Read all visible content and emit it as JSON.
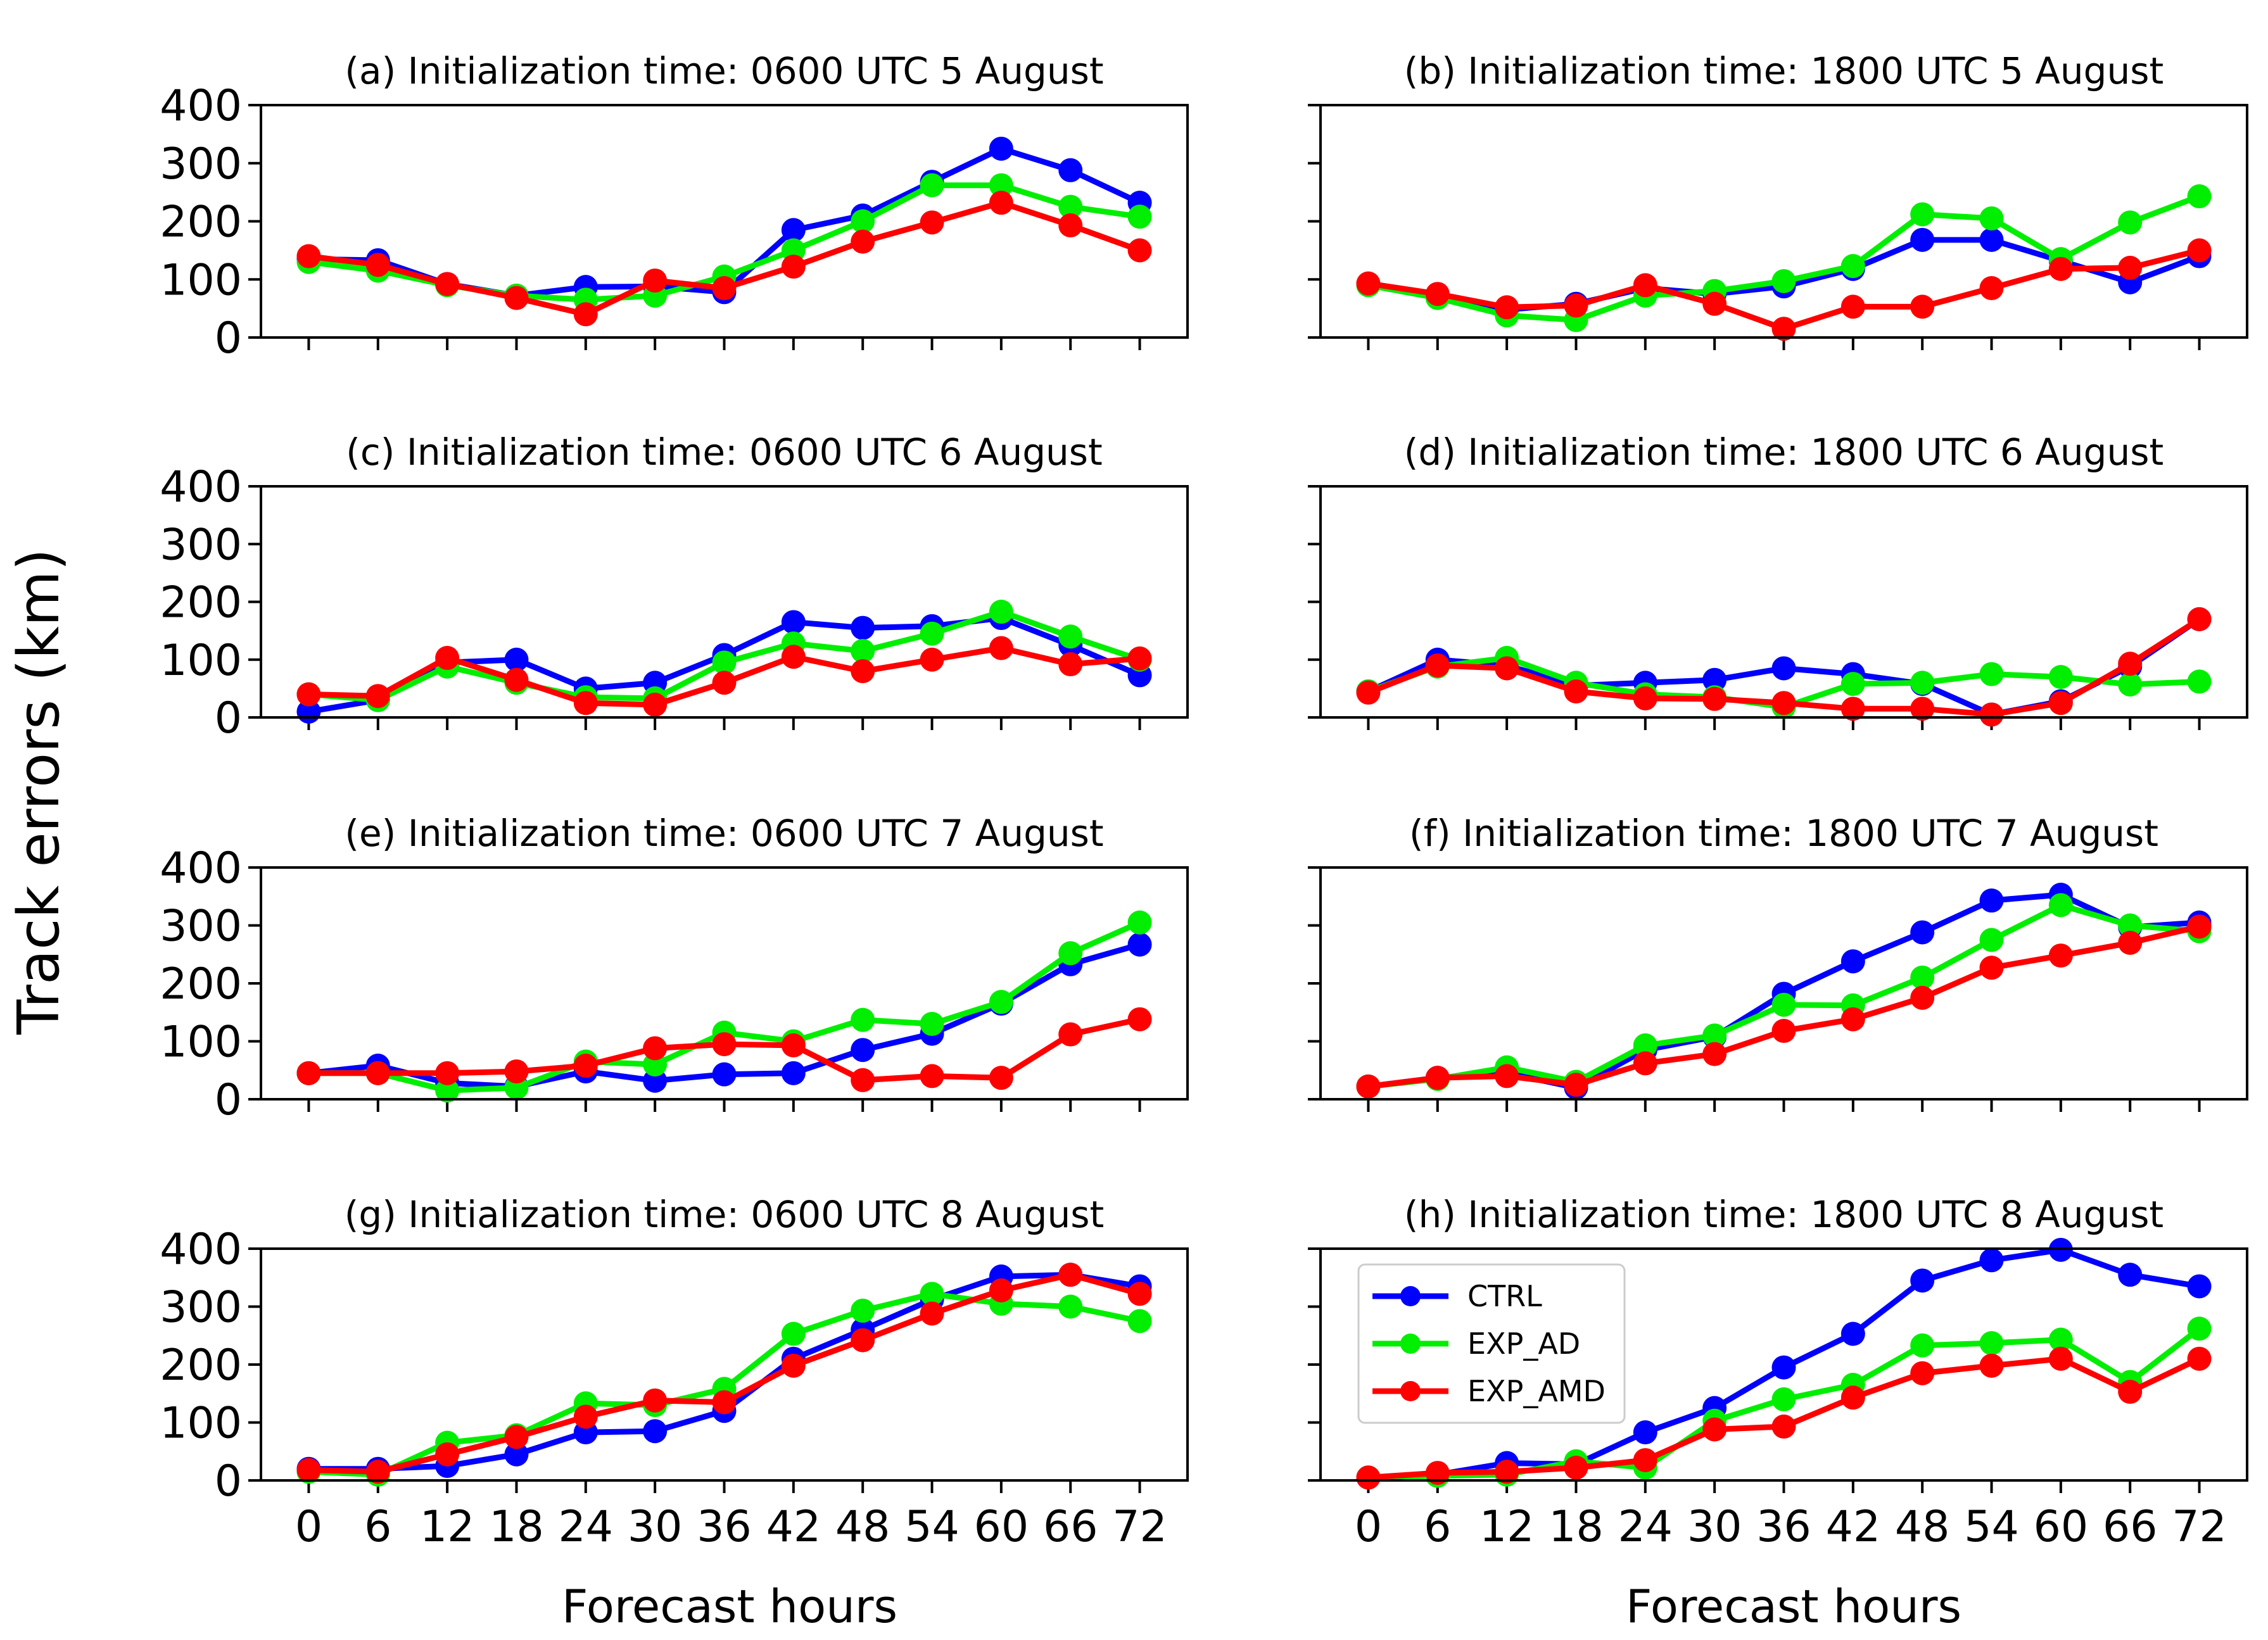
{
  "figure": {
    "ylabel": "Track errors (km)",
    "xlabel": "Forecast hours"
  },
  "legend": {
    "location": "upper-left of panel (h)",
    "entries": [
      "CTRL",
      "EXP_AD",
      "EXP_AMD"
    ]
  },
  "colors": {
    "CTRL": "#0000ff",
    "EXP_AD": "#00ee00",
    "EXP_AMD": "#ff0000"
  },
  "chart_data": [
    {
      "type": "line",
      "title": "(a) Initialization time: 0600 UTC 5 August",
      "x": [
        0,
        6,
        12,
        18,
        24,
        30,
        36,
        42,
        48,
        54,
        60,
        66,
        72
      ],
      "ylim": [
        0,
        400
      ],
      "yticks": [
        0,
        100,
        200,
        300,
        400
      ],
      "series": [
        {
          "name": "CTRL",
          "values": [
            135,
            133,
            92,
            72,
            87,
            88,
            78,
            185,
            210,
            268,
            325,
            288,
            232
          ]
        },
        {
          "name": "EXP_AD",
          "values": [
            130,
            115,
            90,
            72,
            65,
            72,
            105,
            150,
            200,
            262,
            262,
            225,
            208
          ]
        },
        {
          "name": "EXP_AMD",
          "values": [
            140,
            125,
            92,
            68,
            40,
            98,
            85,
            122,
            165,
            198,
            232,
            193,
            150
          ]
        }
      ]
    },
    {
      "type": "line",
      "title": "(b) Initialization time: 1800 UTC 5 August",
      "x": [
        0,
        6,
        12,
        18,
        24,
        30,
        36,
        42,
        48,
        54,
        60,
        66,
        72
      ],
      "ylim": [
        0,
        400
      ],
      "yticks": [
        0,
        100,
        200,
        300,
        400
      ],
      "series": [
        {
          "name": "CTRL",
          "values": [
            92,
            72,
            48,
            58,
            85,
            75,
            88,
            118,
            168,
            168,
            132,
            95,
            140
          ]
        },
        {
          "name": "EXP_AD",
          "values": [
            90,
            68,
            38,
            30,
            72,
            80,
            97,
            123,
            212,
            205,
            135,
            198,
            243
          ]
        },
        {
          "name": "EXP_AMD",
          "values": [
            93,
            75,
            52,
            55,
            90,
            58,
            15,
            53,
            53,
            85,
            118,
            120,
            150
          ]
        }
      ]
    },
    {
      "type": "line",
      "title": "(c) Initialization time: 0600 UTC 6 August",
      "x": [
        0,
        6,
        12,
        18,
        24,
        30,
        36,
        42,
        48,
        54,
        60,
        66,
        72
      ],
      "ylim": [
        0,
        400
      ],
      "yticks": [
        0,
        100,
        200,
        300,
        400
      ],
      "series": [
        {
          "name": "CTRL",
          "values": [
            10,
            30,
            95,
            100,
            50,
            60,
            108,
            165,
            155,
            158,
            172,
            125,
            73
          ]
        },
        {
          "name": "EXP_AD",
          "values": [
            40,
            30,
            88,
            60,
            35,
            33,
            95,
            128,
            115,
            145,
            183,
            140,
            100
          ]
        },
        {
          "name": "EXP_AMD",
          "values": [
            40,
            37,
            103,
            65,
            25,
            22,
            60,
            105,
            80,
            100,
            120,
            92,
            102
          ]
        }
      ]
    },
    {
      "type": "line",
      "title": "(d) Initialization time: 1800 UTC 6 August",
      "x": [
        0,
        6,
        12,
        18,
        24,
        30,
        36,
        42,
        48,
        54,
        60,
        66,
        72
      ],
      "ylim": [
        0,
        400
      ],
      "yticks": [
        0,
        100,
        200,
        300,
        400
      ],
      "series": [
        {
          "name": "CTRL",
          "values": [
            45,
            100,
            90,
            55,
            60,
            65,
            85,
            75,
            58,
            5,
            28,
            88,
            170
          ]
        },
        {
          "name": "EXP_AD",
          "values": [
            45,
            88,
            103,
            60,
            40,
            35,
            18,
            58,
            60,
            75,
            70,
            57,
            62
          ]
        },
        {
          "name": "EXP_AMD",
          "values": [
            43,
            90,
            85,
            45,
            33,
            32,
            25,
            15,
            15,
            5,
            25,
            93,
            170
          ]
        }
      ]
    },
    {
      "type": "line",
      "title": "(e) Initialization time: 0600 UTC 7 August",
      "x": [
        0,
        6,
        12,
        18,
        24,
        30,
        36,
        42,
        48,
        54,
        60,
        66,
        72
      ],
      "ylim": [
        0,
        400
      ],
      "yticks": [
        0,
        100,
        200,
        300,
        400
      ],
      "series": [
        {
          "name": "CTRL",
          "values": [
            45,
            58,
            28,
            22,
            48,
            32,
            43,
            45,
            85,
            113,
            165,
            233,
            267
          ]
        },
        {
          "name": "EXP_AD",
          "values": [
            45,
            45,
            15,
            20,
            65,
            60,
            115,
            100,
            137,
            130,
            168,
            252,
            305
          ]
        },
        {
          "name": "EXP_AMD",
          "values": [
            45,
            45,
            45,
            48,
            58,
            88,
            95,
            93,
            33,
            40,
            37,
            112,
            138
          ]
        }
      ]
    },
    {
      "type": "line",
      "title": "(f) Initialization time: 1800 UTC 7 August",
      "x": [
        0,
        6,
        12,
        18,
        24,
        30,
        36,
        42,
        48,
        54,
        60,
        66,
        72
      ],
      "ylim": [
        0,
        400
      ],
      "yticks": [
        0,
        100,
        200,
        300,
        400
      ],
      "series": [
        {
          "name": "CTRL",
          "values": [
            22,
            37,
            45,
            20,
            85,
            108,
            182,
            238,
            288,
            343,
            353,
            297,
            305
          ]
        },
        {
          "name": "EXP_AD",
          "values": [
            22,
            35,
            55,
            30,
            93,
            110,
            163,
            162,
            210,
            275,
            335,
            300,
            290
          ]
        },
        {
          "name": "EXP_AMD",
          "values": [
            22,
            37,
            40,
            25,
            62,
            78,
            118,
            138,
            175,
            227,
            248,
            270,
            298
          ]
        }
      ]
    },
    {
      "type": "line",
      "title": "(g) Initialization time: 0600 UTC 8 August",
      "x": [
        0,
        6,
        12,
        18,
        24,
        30,
        36,
        42,
        48,
        54,
        60,
        66,
        72
      ],
      "ylim": [
        0,
        400
      ],
      "yticks": [
        0,
        100,
        200,
        300,
        400
      ],
      "series": [
        {
          "name": "CTRL",
          "values": [
            20,
            20,
            25,
            45,
            83,
            85,
            120,
            210,
            260,
            312,
            352,
            355,
            335
          ]
        },
        {
          "name": "EXP_AD",
          "values": [
            15,
            10,
            65,
            78,
            133,
            130,
            158,
            253,
            293,
            322,
            305,
            300,
            275
          ]
        },
        {
          "name": "EXP_AMD",
          "values": [
            18,
            15,
            45,
            75,
            110,
            138,
            135,
            198,
            242,
            288,
            328,
            355,
            322
          ]
        }
      ]
    },
    {
      "type": "line",
      "title": "(h) Initialization time: 1800 UTC 8 August",
      "x": [
        0,
        6,
        12,
        18,
        24,
        30,
        36,
        42,
        48,
        54,
        60,
        66,
        72
      ],
      "ylim": [
        0,
        400
      ],
      "yticks": [
        0,
        100,
        200,
        300,
        400
      ],
      "series": [
        {
          "name": "CTRL",
          "values": [
            5,
            10,
            30,
            28,
            83,
            125,
            195,
            253,
            345,
            380,
            398,
            355,
            335
          ]
        },
        {
          "name": "EXP_AD",
          "values": [
            5,
            8,
            10,
            33,
            22,
            103,
            140,
            165,
            233,
            237,
            243,
            170,
            262
          ]
        },
        {
          "name": "EXP_AMD",
          "values": [
            5,
            13,
            15,
            22,
            35,
            88,
            93,
            143,
            185,
            198,
            210,
            153,
            210
          ]
        }
      ]
    }
  ]
}
